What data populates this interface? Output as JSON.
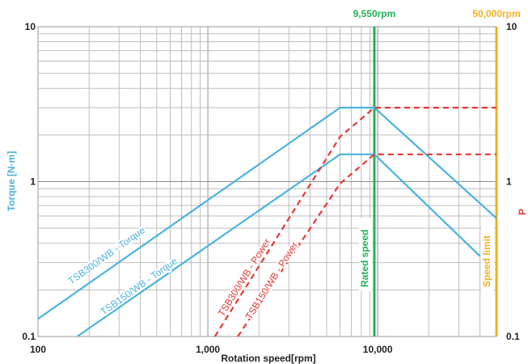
{
  "chart_data": {
    "type": "line",
    "xlabel": "Rotation speed[rpm]",
    "ylabel_left": "Torque [N·m]",
    "ylabel_right": "P",
    "x_scale": "log",
    "y_scale": "log",
    "xlim": [
      100,
      50000
    ],
    "ylim": [
      0.1,
      10
    ],
    "x_ticks": [
      {
        "value": 100,
        "label": "100"
      },
      {
        "value": 1000,
        "label": "1,000"
      },
      {
        "value": 10000,
        "label": "10,000"
      }
    ],
    "y_ticks_left": [
      {
        "value": 0.1,
        "label": "0.1"
      },
      {
        "value": 1,
        "label": "1"
      },
      {
        "value": 10,
        "label": "10"
      }
    ],
    "y_ticks_right": [
      {
        "value": 0.1,
        "label": "0.1"
      },
      {
        "value": 1,
        "label": "1"
      },
      {
        "value": 10,
        "label": "10"
      }
    ],
    "grid": true,
    "series": [
      {
        "name": "TSB300/WB - Torque",
        "color": "#4bb3dd",
        "style": "solid",
        "x": [
          100,
          6000,
          9550,
          50000
        ],
        "y": [
          0.13,
          3.0,
          3.0,
          0.58
        ]
      },
      {
        "name": "TSB150/WB - Torque",
        "color": "#4bb3dd",
        "style": "solid",
        "x": [
          170,
          6000,
          9550,
          40000
        ],
        "y": [
          0.1,
          1.5,
          1.5,
          0.33
        ]
      },
      {
        "name": "TSB300/WB - Power",
        "color": "#e53935",
        "style": "dashed",
        "x": [
          1100,
          6000,
          9550,
          50000
        ],
        "y": [
          0.1,
          1.95,
          3.0,
          3.0
        ]
      },
      {
        "name": "TSB150/WB - Power",
        "color": "#e53935",
        "style": "dashed",
        "x": [
          1500,
          6000,
          9550,
          50000
        ],
        "y": [
          0.1,
          0.97,
          1.5,
          1.5
        ]
      }
    ],
    "vlines": [
      {
        "value": 9550,
        "top_label": "9,550rpm",
        "label": "Rated speed",
        "color": "#1fb356"
      },
      {
        "value": 50000,
        "top_label": "50,000rpm",
        "label": "Speed limit",
        "color": "#f2b01e"
      }
    ]
  }
}
